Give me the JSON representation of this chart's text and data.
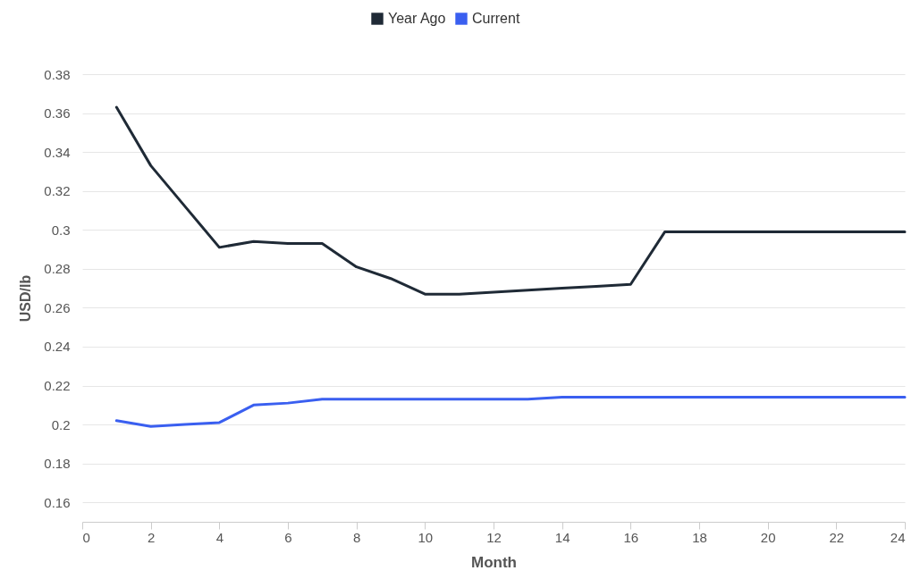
{
  "chart_data": {
    "type": "line",
    "xlabel": "Month",
    "ylabel": "USD/lb",
    "x": [
      1,
      2,
      3,
      4,
      5,
      6,
      7,
      8,
      9,
      10,
      11,
      12,
      13,
      14,
      15,
      16,
      17,
      18,
      19,
      20,
      21,
      22,
      23,
      24
    ],
    "series": [
      {
        "name": "Year Ago",
        "color": "#1f2a36",
        "values": [
          0.363,
          0.333,
          0.312,
          0.291,
          0.294,
          0.293,
          0.293,
          0.281,
          0.275,
          0.267,
          0.267,
          0.268,
          0.269,
          0.27,
          0.271,
          0.272,
          0.299,
          0.299,
          0.299,
          0.299,
          0.299,
          0.299,
          0.299,
          0.299
        ]
      },
      {
        "name": "Current",
        "color": "#3a5ff0",
        "values": [
          0.202,
          0.199,
          0.2,
          0.201,
          0.21,
          0.211,
          0.213,
          0.213,
          0.213,
          0.213,
          0.213,
          0.213,
          0.213,
          0.214,
          0.214,
          0.214,
          0.214,
          0.214,
          0.214,
          0.214,
          0.214,
          0.214,
          0.214,
          0.214
        ]
      }
    ],
    "xlim": [
      0,
      24
    ],
    "xticks": [
      0,
      2,
      4,
      6,
      8,
      10,
      12,
      14,
      16,
      18,
      20,
      22,
      24
    ],
    "ylim": [
      0.15,
      0.38
    ],
    "yticks": [
      0.16,
      0.18,
      0.2,
      0.22,
      0.24,
      0.26,
      0.28,
      0.3,
      0.32,
      0.34,
      0.36,
      0.38
    ],
    "grid": "y",
    "legend": "top",
    "marker": "none",
    "line_style": "solid"
  }
}
